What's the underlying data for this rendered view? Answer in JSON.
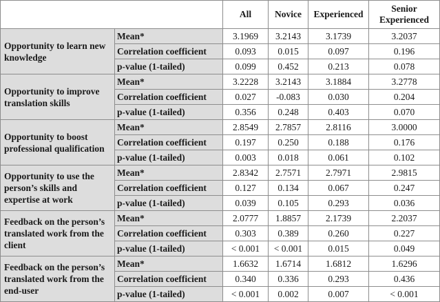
{
  "columns": [
    "All",
    "Novice",
    "Experienced",
    "Senior Experienced"
  ],
  "rows": [
    {
      "factor": "Opportunity to learn new knowledge",
      "stats": [
        {
          "label": "Mean*",
          "values": [
            "3.1969",
            "3.2143",
            "3.1739",
            "3.2037"
          ]
        },
        {
          "label": "Correlation coefficient",
          "values": [
            "0.093",
            "0.015",
            "0.097",
            "0.196"
          ]
        },
        {
          "label": "p-value (1-tailed)",
          "values": [
            "0.099",
            "0.452",
            "0.213",
            "0.078"
          ]
        }
      ]
    },
    {
      "factor": "Opportunity to improve translation skills",
      "stats": [
        {
          "label": "Mean*",
          "values": [
            "3.2228",
            "3.2143",
            "3.1884",
            "3.2778"
          ]
        },
        {
          "label": "Correlation coefficient",
          "values": [
            "0.027",
            "-0.083",
            "0.030",
            "0.204"
          ]
        },
        {
          "label": "p-value (1-tailed)",
          "values": [
            "0.356",
            "0.248",
            "0.403",
            "0.070"
          ]
        }
      ]
    },
    {
      "factor": "Opportunity to boost professional qualification",
      "stats": [
        {
          "label": "Mean*",
          "values": [
            "2.8549",
            "2.7857",
            "2.8116",
            "3.0000"
          ]
        },
        {
          "label": "Correlation coefficient",
          "values": [
            "0.197",
            "0.250",
            "0.188",
            "0.176"
          ]
        },
        {
          "label": "p-value (1-tailed)",
          "values": [
            "0.003",
            "0.018",
            "0.061",
            "0.102"
          ]
        }
      ]
    },
    {
      "factor": "Opportunity to use the person’s skills and expertise at work",
      "stats": [
        {
          "label": "Mean*",
          "values": [
            "2.8342",
            "2.7571",
            "2.7971",
            "2.9815"
          ]
        },
        {
          "label": "Correlation coefficient",
          "values": [
            "0.127",
            "0.134",
            "0.067",
            "0.247"
          ]
        },
        {
          "label": "p-value (1-tailed)",
          "values": [
            "0.039",
            "0.105",
            "0.293",
            "0.036"
          ]
        }
      ]
    },
    {
      "factor": "Feedback on the person’s translated work from the client",
      "stats": [
        {
          "label": "Mean*",
          "values": [
            "2.0777",
            "1.8857",
            "2.1739",
            "2.2037"
          ]
        },
        {
          "label": "Correlation coefficient",
          "values": [
            "0.303",
            "0.389",
            "0.260",
            "0.227"
          ]
        },
        {
          "label": "p-value (1-tailed)",
          "values": [
            "< 0.001",
            "< 0.001",
            "0.015",
            "0.049"
          ]
        }
      ]
    },
    {
      "factor": "Feedback on the person’s translated work from the end-user",
      "stats": [
        {
          "label": "Mean*",
          "values": [
            "1.6632",
            "1.6714",
            "1.6812",
            "1.6296"
          ]
        },
        {
          "label": "Correlation coefficient",
          "values": [
            "0.340",
            "0.336",
            "0.293",
            "0.436"
          ]
        },
        {
          "label": "p-value (1-tailed)",
          "values": [
            "< 0.001",
            "0.002",
            "0.007",
            "< 0.001"
          ]
        }
      ]
    }
  ]
}
